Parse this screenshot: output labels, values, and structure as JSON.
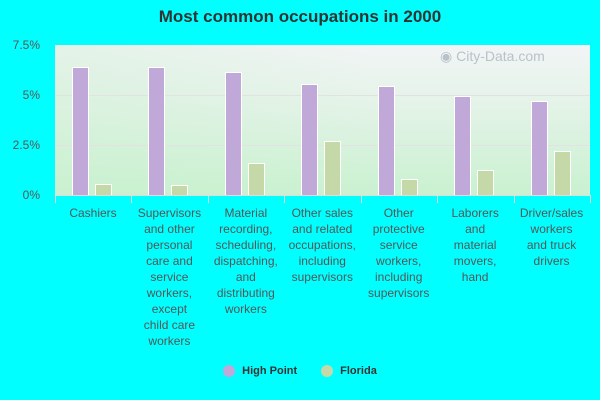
{
  "title": "Most common occupations in 2000",
  "watermark": "City-Data.com",
  "legend": [
    {
      "label": "High Point",
      "color": "#c0a8d9"
    },
    {
      "label": "Florida",
      "color": "#c5d8a8"
    }
  ],
  "y_ticks": [
    "7.5%",
    "5%",
    "2.5%",
    "0%"
  ],
  "chart_data": {
    "type": "bar",
    "title": "Most common occupations in 2000",
    "xlabel": "",
    "ylabel": "",
    "ylim": [
      0,
      7.5
    ],
    "y_ticks": [
      0,
      2.5,
      5,
      7.5
    ],
    "y_tick_labels": [
      "0%",
      "2.5%",
      "5%",
      "7.5%"
    ],
    "grid": true,
    "legend_position": "bottom",
    "categories": [
      "Cashiers",
      "Supervisors and other personal care and service workers, except child care workers",
      "Material recording, scheduling, dispatching, and distributing workers",
      "Other sales and related occupations, including supervisors",
      "Other protective service workers, including supervisors",
      "Laborers and material movers, hand",
      "Driver/sales workers and truck drivers"
    ],
    "series": [
      {
        "name": "High Point",
        "color": "#c0a8d9",
        "values": [
          6.4,
          6.4,
          6.15,
          5.55,
          5.45,
          4.95,
          4.7
        ]
      },
      {
        "name": "Florida",
        "color": "#c5d8a8",
        "values": [
          0.55,
          0.5,
          1.6,
          2.7,
          0.8,
          1.25,
          2.2
        ]
      }
    ]
  }
}
